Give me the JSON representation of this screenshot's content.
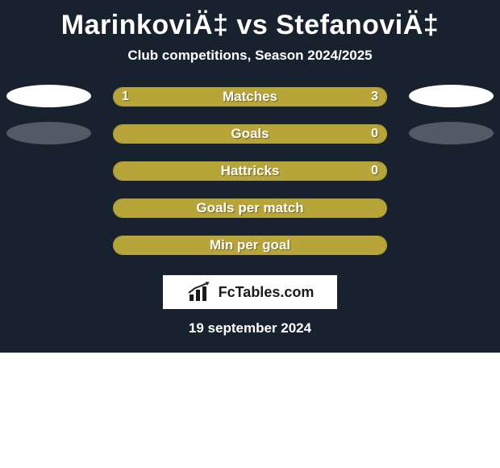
{
  "colors": {
    "panel_bg": "#18222e",
    "white": "#ffffff",
    "oval_white": "#ffffff",
    "oval_dark": "#515b66",
    "bar_border": "#b7a53a",
    "bar_fill": "#b7a53a",
    "bar_bg": "#18222e",
    "logo_black": "#1b1b1b"
  },
  "header": {
    "title": "MarinkoviÄ‡ vs StefanoviÄ‡",
    "subtitle": "Club competitions, Season 2024/2025"
  },
  "stats": [
    {
      "label": "Matches",
      "left_value": "1",
      "right_value": "3",
      "left_pct": 11,
      "right_pct": 89,
      "left_oval_color": "#ffffff",
      "right_oval_color": "#ffffff",
      "show_values": true
    },
    {
      "label": "Goals",
      "left_value": "",
      "right_value": "0",
      "left_pct": 100,
      "right_pct": 0,
      "left_oval_color": "#515b66",
      "right_oval_color": "#515b66",
      "show_values": true
    },
    {
      "label": "Hattricks",
      "left_value": "",
      "right_value": "0",
      "left_pct": 100,
      "right_pct": 0,
      "left_oval_color": null,
      "right_oval_color": null,
      "show_values": true
    },
    {
      "label": "Goals per match",
      "left_value": "",
      "right_value": "",
      "left_pct": 100,
      "right_pct": 0,
      "left_oval_color": null,
      "right_oval_color": null,
      "show_values": false
    },
    {
      "label": "Min per goal",
      "left_value": "",
      "right_value": "",
      "left_pct": 100,
      "right_pct": 0,
      "left_oval_color": null,
      "right_oval_color": null,
      "show_values": false
    }
  ],
  "logo": {
    "text": "FcTables.com"
  },
  "date": "19 september 2024"
}
